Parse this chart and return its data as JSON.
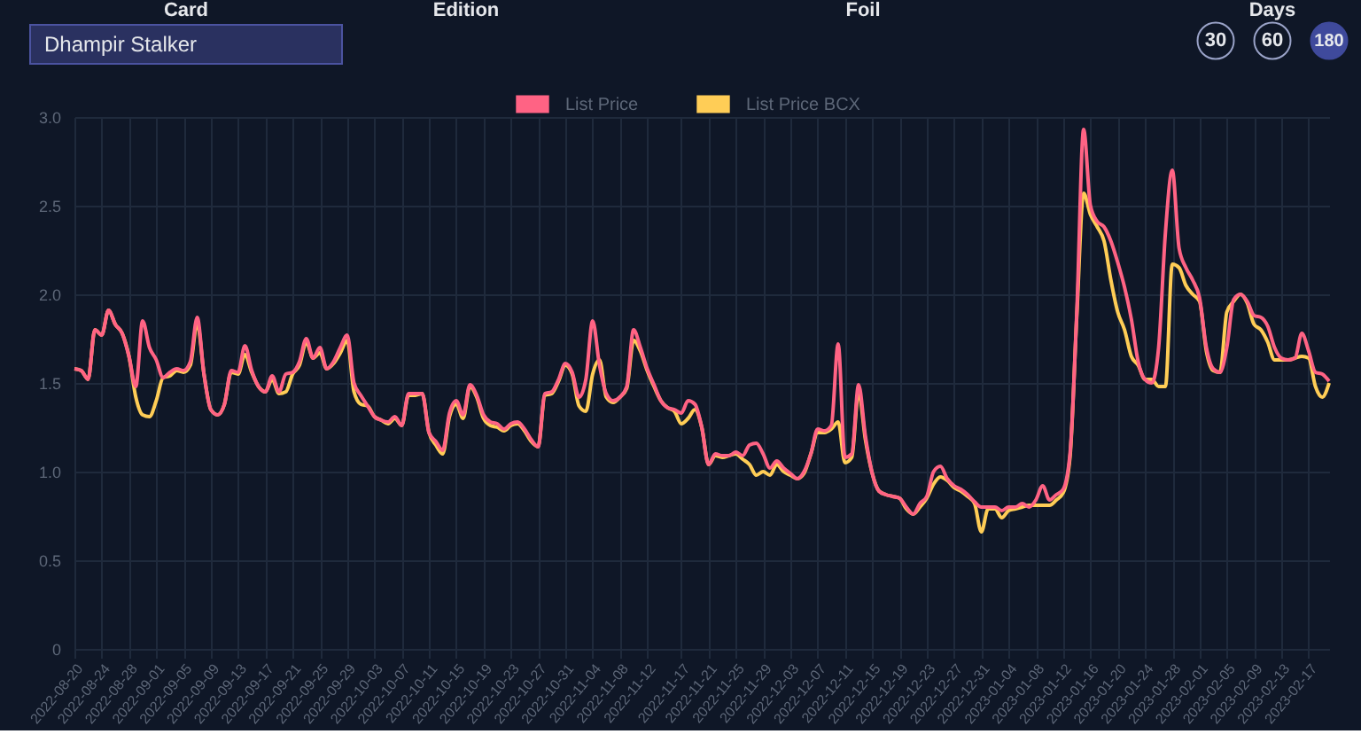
{
  "chart_data": {
    "type": "line",
    "annotations": [
      "Card",
      "Dhampir Stalker",
      "Edition",
      "Foil",
      "Days",
      "30",
      "60",
      "180"
    ],
    "x": [
      "2022-08-20",
      "2022-08-21",
      "2022-08-22",
      "2022-08-23",
      "2022-08-24",
      "2022-08-25",
      "2022-08-26",
      "2022-08-27",
      "2022-08-28",
      "2022-08-29",
      "2022-08-30",
      "2022-08-31",
      "2022-09-01",
      "2022-09-02",
      "2022-09-03",
      "2022-09-04",
      "2022-09-05",
      "2022-09-06",
      "2022-09-07",
      "2022-09-08",
      "2022-09-09",
      "2022-09-10",
      "2022-09-11",
      "2022-09-12",
      "2022-09-13",
      "2022-09-14",
      "2022-09-15",
      "2022-09-16",
      "2022-09-17",
      "2022-09-18",
      "2022-09-19",
      "2022-09-20",
      "2022-09-21",
      "2022-09-22",
      "2022-09-23",
      "2022-09-24",
      "2022-09-25",
      "2022-09-26",
      "2022-09-27",
      "2022-09-28",
      "2022-09-29",
      "2022-09-30",
      "2022-10-01",
      "2022-10-02",
      "2022-10-03",
      "2022-10-04",
      "2022-10-05",
      "2022-10-06",
      "2022-10-07",
      "2022-10-08",
      "2022-10-09",
      "2022-10-10",
      "2022-10-11",
      "2022-10-12",
      "2022-10-13",
      "2022-10-14",
      "2022-10-15",
      "2022-10-16",
      "2022-10-17",
      "2022-10-18",
      "2022-10-19",
      "2022-10-20",
      "2022-10-21",
      "2022-10-22",
      "2022-10-23",
      "2022-10-24",
      "2022-10-25",
      "2022-10-26",
      "2022-10-27",
      "2022-10-28",
      "2022-10-29",
      "2022-10-30",
      "2022-10-31",
      "2022-11-01",
      "2022-11-02",
      "2022-11-03",
      "2022-11-04",
      "2022-11-05",
      "2022-11-06",
      "2022-11-07",
      "2022-11-08",
      "2022-11-09",
      "2022-11-10",
      "2022-11-11",
      "2022-11-12",
      "2022-11-13",
      "2022-11-14",
      "2022-11-15",
      "2022-11-16",
      "2022-11-17",
      "2022-11-18",
      "2022-11-19",
      "2022-11-20",
      "2022-11-21",
      "2022-11-22",
      "2022-11-23",
      "2022-11-24",
      "2022-11-25",
      "2022-11-26",
      "2022-11-27",
      "2022-11-28",
      "2022-11-29",
      "2022-11-30",
      "2022-12-01",
      "2022-12-02",
      "2022-12-03",
      "2022-12-04",
      "2022-12-05",
      "2022-12-06",
      "2022-12-07",
      "2022-12-08",
      "2022-12-09",
      "2022-12-10",
      "2022-12-11",
      "2022-12-12",
      "2022-12-13",
      "2022-12-14",
      "2022-12-15",
      "2022-12-16",
      "2022-12-17",
      "2022-12-18",
      "2022-12-19",
      "2022-12-20",
      "2022-12-21",
      "2022-12-22",
      "2022-12-23",
      "2022-12-24",
      "2022-12-25",
      "2022-12-26",
      "2022-12-27",
      "2022-12-28",
      "2022-12-29",
      "2022-12-30",
      "2022-12-31",
      "2023-01-01",
      "2023-01-02",
      "2023-01-03",
      "2023-01-04",
      "2023-01-05",
      "2023-01-06",
      "2023-01-07",
      "2023-01-08",
      "2023-01-09",
      "2023-01-10",
      "2023-01-11",
      "2023-01-12",
      "2023-01-13",
      "2023-01-14",
      "2023-01-15",
      "2023-01-16",
      "2023-01-17",
      "2023-01-18",
      "2023-01-19",
      "2023-01-20",
      "2023-01-21",
      "2023-01-22",
      "2023-01-23",
      "2023-01-24",
      "2023-01-25",
      "2023-01-26",
      "2023-01-27",
      "2023-01-28",
      "2023-01-29",
      "2023-01-30",
      "2023-01-31",
      "2023-02-01",
      "2023-02-02",
      "2023-02-03",
      "2023-02-04",
      "2023-02-05",
      "2023-02-06",
      "2023-02-07",
      "2023-02-08",
      "2023-02-09",
      "2023-02-10",
      "2023-02-11",
      "2023-02-12",
      "2023-02-13",
      "2023-02-14",
      "2023-02-15",
      "2023-02-16",
      "2023-02-17",
      "2023-02-18",
      "2023-02-19",
      "2023-02-20"
    ],
    "series": [
      {
        "name": "List Price",
        "color": "#ff6384",
        "values": [
          1.58,
          1.57,
          1.52,
          1.8,
          1.77,
          1.91,
          1.83,
          1.78,
          1.65,
          1.48,
          1.85,
          1.7,
          1.63,
          1.53,
          1.56,
          1.58,
          1.57,
          1.62,
          1.87,
          1.55,
          1.35,
          1.32,
          1.38,
          1.57,
          1.56,
          1.71,
          1.57,
          1.48,
          1.45,
          1.54,
          1.45,
          1.55,
          1.56,
          1.62,
          1.75,
          1.64,
          1.7,
          1.58,
          1.62,
          1.7,
          1.77,
          1.5,
          1.43,
          1.37,
          1.31,
          1.29,
          1.28,
          1.31,
          1.26,
          1.44,
          1.44,
          1.44,
          1.22,
          1.17,
          1.12,
          1.33,
          1.4,
          1.32,
          1.49,
          1.43,
          1.32,
          1.28,
          1.27,
          1.24,
          1.27,
          1.28,
          1.24,
          1.18,
          1.14,
          1.44,
          1.45,
          1.52,
          1.61,
          1.56,
          1.42,
          1.52,
          1.85,
          1.6,
          1.44,
          1.4,
          1.42,
          1.48,
          1.8,
          1.7,
          1.58,
          1.49,
          1.4,
          1.36,
          1.35,
          1.33,
          1.4,
          1.38,
          1.25,
          1.04,
          1.1,
          1.09,
          1.09,
          1.11,
          1.09,
          1.15,
          1.16,
          1.1,
          1.02,
          1.06,
          1.02,
          0.99,
          0.96,
          1.0,
          1.1,
          1.24,
          1.23,
          1.26,
          1.72,
          1.08,
          1.1,
          1.49,
          1.2,
          0.99,
          0.89,
          0.87,
          0.86,
          0.85,
          0.8,
          0.76,
          0.82,
          0.86,
          1.0,
          1.03,
          0.96,
          0.92,
          0.9,
          0.87,
          0.83,
          0.8,
          0.8,
          0.8,
          0.78,
          0.8,
          0.8,
          0.82,
          0.8,
          0.84,
          0.92,
          0.84,
          0.87,
          0.9,
          1.1,
          1.9,
          2.93,
          2.5,
          2.41,
          2.38,
          2.3,
          2.18,
          2.04,
          1.86,
          1.62,
          1.52,
          1.5,
          1.7,
          2.35,
          2.7,
          2.26,
          2.15,
          2.08,
          1.98,
          1.7,
          1.58,
          1.56,
          1.7,
          1.97,
          2.0,
          1.96,
          1.88,
          1.87,
          1.82,
          1.7,
          1.64,
          1.63,
          1.64,
          1.78,
          1.68,
          1.56,
          1.55,
          1.51
        ]
      },
      {
        "name": "List Price BCX",
        "color": "#ffcd56",
        "values": [
          1.58,
          1.57,
          1.52,
          1.8,
          1.77,
          1.91,
          1.83,
          1.78,
          1.65,
          1.42,
          1.32,
          1.31,
          1.4,
          1.53,
          1.54,
          1.57,
          1.56,
          1.6,
          1.84,
          1.55,
          1.35,
          1.32,
          1.38,
          1.56,
          1.55,
          1.66,
          1.56,
          1.48,
          1.45,
          1.52,
          1.44,
          1.45,
          1.55,
          1.6,
          1.73,
          1.64,
          1.67,
          1.58,
          1.61,
          1.67,
          1.74,
          1.45,
          1.38,
          1.37,
          1.31,
          1.29,
          1.27,
          1.3,
          1.26,
          1.43,
          1.43,
          1.44,
          1.22,
          1.15,
          1.1,
          1.31,
          1.38,
          1.3,
          1.48,
          1.42,
          1.3,
          1.26,
          1.25,
          1.23,
          1.26,
          1.27,
          1.23,
          1.17,
          1.14,
          1.43,
          1.44,
          1.51,
          1.6,
          1.55,
          1.37,
          1.34,
          1.55,
          1.63,
          1.42,
          1.39,
          1.42,
          1.47,
          1.74,
          1.68,
          1.57,
          1.48,
          1.4,
          1.36,
          1.34,
          1.27,
          1.3,
          1.35,
          1.25,
          1.04,
          1.09,
          1.08,
          1.09,
          1.1,
          1.07,
          1.04,
          0.98,
          1.0,
          0.98,
          1.04,
          1.0,
          0.98,
          0.96,
          0.99,
          1.1,
          1.22,
          1.22,
          1.24,
          1.28,
          1.05,
          1.08,
          1.45,
          1.18,
          0.99,
          0.89,
          0.87,
          0.86,
          0.85,
          0.79,
          0.76,
          0.8,
          0.85,
          0.93,
          0.97,
          0.95,
          0.91,
          0.89,
          0.86,
          0.82,
          0.66,
          0.79,
          0.79,
          0.74,
          0.78,
          0.79,
          0.8,
          0.81,
          0.81,
          0.81,
          0.81,
          0.84,
          0.88,
          1.08,
          1.88,
          2.57,
          2.45,
          2.38,
          2.3,
          2.08,
          1.9,
          1.8,
          1.65,
          1.6,
          1.52,
          1.52,
          1.48,
          1.48,
          2.17,
          2.15,
          2.05,
          2.0,
          1.96,
          1.68,
          1.57,
          1.56,
          1.9,
          1.96,
          2.0,
          1.95,
          1.83,
          1.8,
          1.73,
          1.63,
          1.63,
          1.63,
          1.64,
          1.65,
          1.64,
          1.48,
          1.42,
          1.5
        ]
      }
    ],
    "xlim": [
      "2022-08-20",
      "2023-02-20"
    ],
    "xticks": [
      "2022-08-20",
      "2022-08-24",
      "2022-08-28",
      "2022-09-01",
      "2022-09-05",
      "2022-09-09",
      "2022-09-13",
      "2022-09-17",
      "2022-09-21",
      "2022-09-25",
      "2022-09-29",
      "2022-10-03",
      "2022-10-07",
      "2022-10-11",
      "2022-10-15",
      "2022-10-19",
      "2022-10-23",
      "2022-10-27",
      "2022-10-31",
      "2022-11-04",
      "2022-11-08",
      "2022-11-12",
      "2022-11-17",
      "2022-11-21",
      "2022-11-25",
      "2022-11-29",
      "2022-12-03",
      "2022-12-07",
      "2022-12-11",
      "2022-12-15",
      "2022-12-19",
      "2022-12-23",
      "2022-12-27",
      "2022-12-31",
      "2023-01-04",
      "2023-01-08",
      "2023-01-12",
      "2023-01-16",
      "2023-01-20",
      "2023-01-24",
      "2023-01-28",
      "2023-02-01",
      "2023-02-05",
      "2023-02-09",
      "2023-02-13",
      "2023-02-17"
    ],
    "ylim": [
      0,
      3.0
    ],
    "yticks": [
      0,
      {
        "value": 0.5,
        "label": "0.5"
      },
      {
        "value": 1,
        "label": "1.0"
      },
      {
        "value": 1.5,
        "label": "1.5"
      },
      {
        "value": 2,
        "label": "2.0"
      },
      {
        "value": 2.5,
        "label": "2.5"
      },
      {
        "value": 3,
        "label": "3.0"
      }
    ],
    "grid": true,
    "legend": "top",
    "marker": "none",
    "line_style": "solid"
  }
}
